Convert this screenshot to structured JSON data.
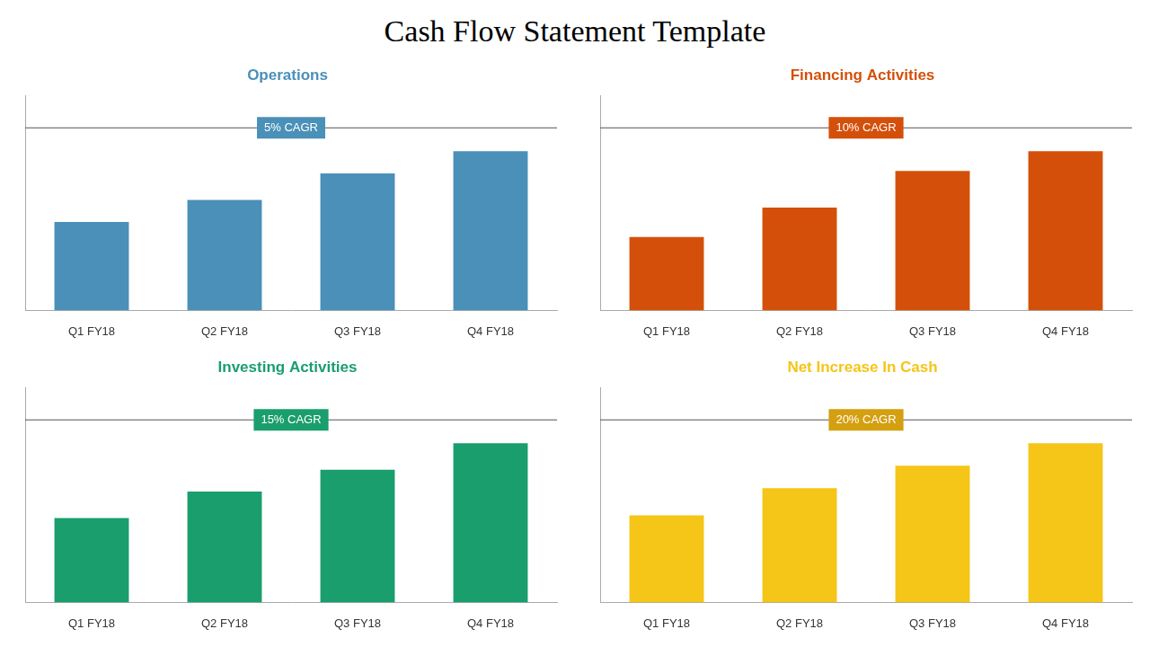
{
  "title": "Cash Flow Statement Template",
  "chart_data": [
    {
      "type": "bar",
      "title": "Operations",
      "color": "#4A90B8",
      "categories": [
        "Q1 FY18",
        "Q2 FY18",
        "Q3 FY18",
        "Q4 FY18"
      ],
      "values": [
        40,
        50,
        62,
        72
      ],
      "ylim": [
        0,
        97.2
      ],
      "grid": false,
      "tick_labels": "x",
      "annotations": [
        {
          "text": "5% CAGR",
          "color": "#4A90B8"
        }
      ]
    },
    {
      "type": "bar",
      "title": "Financing Activities",
      "color": "#D4500A",
      "categories": [
        "Q1 FY18",
        "Q2 FY18",
        "Q3 FY18",
        "Q4 FY18"
      ],
      "values": [
        30,
        42,
        57,
        65
      ],
      "ylim": [
        0,
        87.75
      ],
      "grid": false,
      "tick_labels": "x",
      "annotations": [
        {
          "text": "10% CAGR",
          "color": "#D4500A"
        }
      ]
    },
    {
      "type": "bar",
      "title": "Investing Activities",
      "color": "#1A9E6E",
      "categories": [
        "Q1 FY18",
        "Q2 FY18",
        "Q3 FY18",
        "Q4 FY18"
      ],
      "values": [
        35,
        46,
        55,
        66
      ],
      "ylim": [
        0,
        89.1
      ],
      "grid": false,
      "tick_labels": "x",
      "annotations": [
        {
          "text": "15% CAGR",
          "color": "#1A9E6E"
        }
      ]
    },
    {
      "type": "bar",
      "title": "Net Increase In Cash",
      "color": "#F5C518",
      "categories": [
        "Q1 FY18",
        "Q2 FY18",
        "Q3 FY18",
        "Q4 FY18"
      ],
      "values": [
        35,
        46,
        55,
        64
      ],
      "ylim": [
        0,
        86.4
      ],
      "grid": false,
      "tick_labels": "x",
      "annotations": [
        {
          "text": "20% CAGR",
          "color": "#D4A010"
        }
      ]
    }
  ]
}
